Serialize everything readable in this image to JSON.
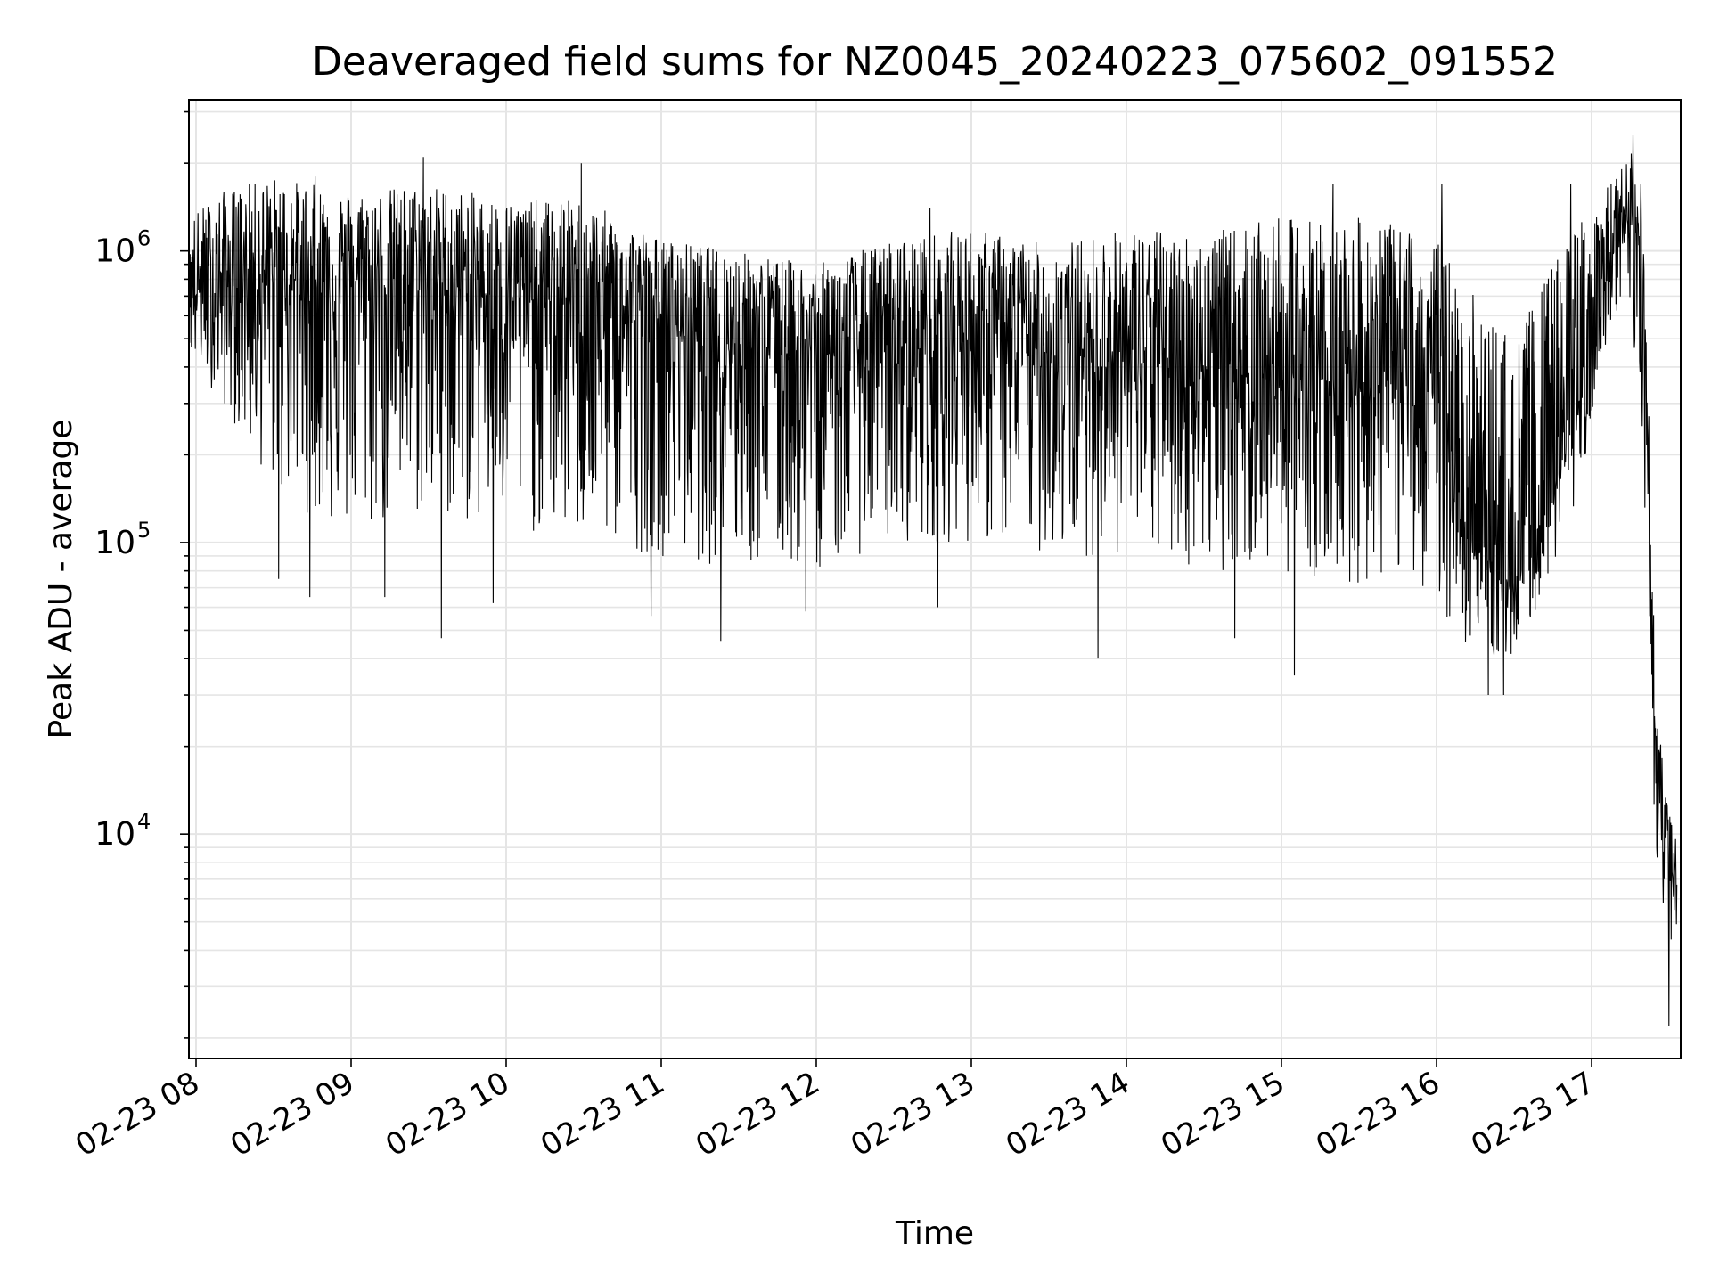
{
  "chart_data": {
    "type": "line",
    "title": "Deaveraged field sums for NZ0045_20240223_075602_091552",
    "xlabel": "Time",
    "ylabel": "Peak ADU - average",
    "yscale": "log",
    "ylim": [
      1700,
      3300000
    ],
    "xlim": [
      "02-23 07:56",
      "02-23 17:33"
    ],
    "grid": true,
    "line_color": "#000000",
    "grid_color": "#e5e5e5",
    "x_ticks": [
      {
        "time": "02-23 08:00",
        "label": "02-23 08"
      },
      {
        "time": "02-23 09:00",
        "label": "02-23 09"
      },
      {
        "time": "02-23 10:00",
        "label": "02-23 10"
      },
      {
        "time": "02-23 11:00",
        "label": "02-23 11"
      },
      {
        "time": "02-23 12:00",
        "label": "02-23 12"
      },
      {
        "time": "02-23 13:00",
        "label": "02-23 13"
      },
      {
        "time": "02-23 14:00",
        "label": "02-23 14"
      },
      {
        "time": "02-23 15:00",
        "label": "02-23 15"
      },
      {
        "time": "02-23 16:00",
        "label": "02-23 16"
      },
      {
        "time": "02-23 17:00",
        "label": "02-23 17"
      }
    ],
    "y_ticks": [
      {
        "value": 10000,
        "base": "10",
        "exp": "4"
      },
      {
        "value": 100000,
        "base": "10",
        "exp": "5"
      },
      {
        "value": 1000000,
        "base": "10",
        "exp": "6"
      }
    ],
    "series": [
      {
        "x": [
          "02-23 07:56",
          "02-23 08:10",
          "02-23 08:30",
          "02-23 09:00",
          "02-23 09:30",
          "02-23 10:00",
          "02-23 10:30",
          "02-23 11:00",
          "02-23 11:30",
          "02-23 12:00",
          "02-23 12:30",
          "02-23 13:00",
          "02-23 13:30",
          "02-23 14:00",
          "02-23 14:30",
          "02-23 15:00",
          "02-23 15:30",
          "02-23 15:50",
          "02-23 16:00",
          "02-23 16:15",
          "02-23 16:30",
          "02-23 16:45",
          "02-23 16:55",
          "02-23 17:05",
          "02-23 17:15",
          "02-23 17:20",
          "02-23 17:25",
          "02-23 17:33"
        ],
        "median": [
          700000,
          750000,
          800000,
          800000,
          750000,
          700000,
          650000,
          550000,
          500000,
          450000,
          450000,
          500000,
          450000,
          420000,
          400000,
          380000,
          360000,
          350000,
          330000,
          100000,
          70000,
          150000,
          300000,
          800000,
          1200000,
          900000,
          15000,
          6000
        ],
        "low": [
          450000,
          300000,
          150000,
          100000,
          120000,
          110000,
          100000,
          90000,
          80000,
          80000,
          100000,
          100000,
          90000,
          90000,
          80000,
          80000,
          70000,
          80000,
          60000,
          40000,
          40000,
          80000,
          150000,
          400000,
          600000,
          100000,
          8000,
          3000
        ],
        "high": [
          1300000,
          1600000,
          1800000,
          1600000,
          1700000,
          1500000,
          1500000,
          1100000,
          1000000,
          900000,
          1100000,
          1200000,
          1050000,
          1200000,
          1150000,
          1300000,
          1300000,
          1200000,
          1100000,
          700000,
          500000,
          900000,
          1300000,
          1600000,
          2200000,
          1800000,
          25000,
          11000
        ],
        "spikes_high": [
          {
            "time": "02-23 09:28",
            "value": 2100000
          },
          {
            "time": "02-23 10:29",
            "value": 2000000
          },
          {
            "time": "02-23 08:46",
            "value": 1800000
          },
          {
            "time": "02-23 15:20",
            "value": 1700000
          },
          {
            "time": "02-23 17:16",
            "value": 2500000
          },
          {
            "time": "02-23 16:52",
            "value": 1700000
          },
          {
            "time": "02-23 16:02",
            "value": 1700000
          },
          {
            "time": "02-23 12:44",
            "value": 1400000
          }
        ],
        "spikes_low": [
          {
            "time": "02-23 08:32",
            "value": 75000
          },
          {
            "time": "02-23 08:44",
            "value": 65000
          },
          {
            "time": "02-23 09:13",
            "value": 65000
          },
          {
            "time": "02-23 09:35",
            "value": 47000
          },
          {
            "time": "02-23 09:55",
            "value": 62000
          },
          {
            "time": "02-23 10:56",
            "value": 56000
          },
          {
            "time": "02-23 11:23",
            "value": 46000
          },
          {
            "time": "02-23 11:56",
            "value": 58000
          },
          {
            "time": "02-23 12:47",
            "value": 60000
          },
          {
            "time": "02-23 13:49",
            "value": 40000
          },
          {
            "time": "02-23 14:42",
            "value": 47000
          },
          {
            "time": "02-23 15:05",
            "value": 35000
          },
          {
            "time": "02-23 16:20",
            "value": 30000
          },
          {
            "time": "02-23 16:26",
            "value": 30000
          },
          {
            "time": "02-23 17:30",
            "value": 2200
          }
        ]
      }
    ]
  }
}
